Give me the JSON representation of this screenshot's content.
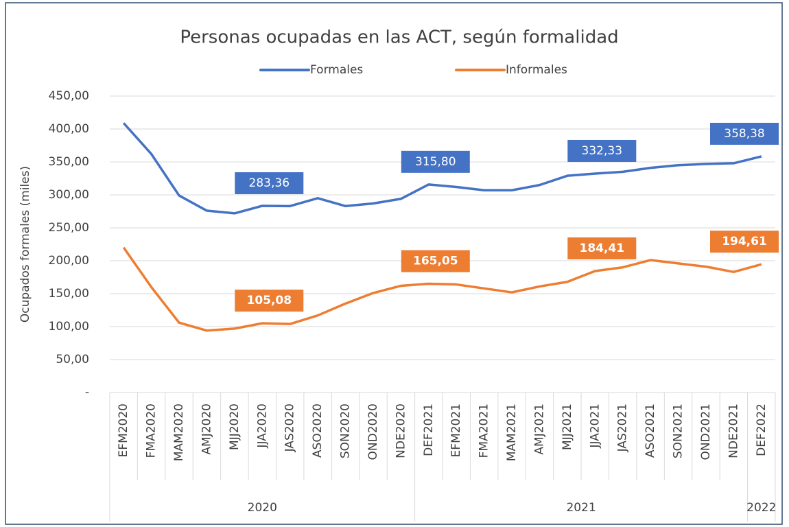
{
  "chart_data": {
    "type": "line",
    "title": "Personas ocupadas en las ACT, según formalidad",
    "y_label": "Ocupados formales (miles)",
    "categories": [
      "EFM2020",
      "FMA2020",
      "MAM2020",
      "AMJ2020",
      "MJJ2020",
      "JJA2020",
      "JAS2020",
      "ASO2020",
      "SON2020",
      "OND2020",
      "NDE2020",
      "DEF2021",
      "EFM2021",
      "FMA2021",
      "MAM2021",
      "AMJ2021",
      "MJJ2021",
      "JJA2021",
      "JAS2021",
      "ASO2021",
      "SON2021",
      "OND2021",
      "NDE2021",
      "DEF2022"
    ],
    "groups": [
      {
        "label": "2020",
        "count": 11
      },
      {
        "label": "2021",
        "count": 12
      },
      {
        "label": "2022",
        "count": 1
      }
    ],
    "series": [
      {
        "name": "Formales",
        "color": "#4472c4",
        "values": [
          409,
          362,
          299,
          276,
          272,
          283.36,
          283,
          295,
          283,
          287,
          294,
          315.8,
          312,
          307,
          307,
          315,
          329,
          332.33,
          335,
          341,
          345,
          347,
          348,
          358.38
        ],
        "value_labels": [
          null,
          null,
          null,
          null,
          null,
          "283,36",
          null,
          null,
          null,
          null,
          null,
          "315,80",
          null,
          null,
          null,
          null,
          null,
          "332,33",
          null,
          null,
          null,
          null,
          null,
          "358,38"
        ]
      },
      {
        "name": "Informales",
        "color": "#ed7d31",
        "values": [
          220,
          160,
          106,
          94,
          97,
          105.08,
          104,
          117,
          135,
          151,
          162,
          165.05,
          164,
          158,
          152,
          161,
          168,
          184.41,
          190,
          201,
          196,
          191,
          183,
          194.61
        ],
        "value_labels": [
          null,
          null,
          null,
          null,
          null,
          "105,08",
          null,
          null,
          null,
          null,
          null,
          "165,05",
          null,
          null,
          null,
          null,
          null,
          "184,41",
          null,
          null,
          null,
          null,
          null,
          "194,61"
        ]
      }
    ],
    "ylim": [
      0,
      450
    ],
    "yticks": [
      {
        "value": 0,
        "label": "-"
      },
      {
        "value": 50,
        "label": "50,00"
      },
      {
        "value": 100,
        "label": "100,00"
      },
      {
        "value": 150,
        "label": "150,00"
      },
      {
        "value": 200,
        "label": "200,00"
      },
      {
        "value": 250,
        "label": "250,00"
      },
      {
        "value": 300,
        "label": "300,00"
      },
      {
        "value": 350,
        "label": "350,00"
      },
      {
        "value": 400,
        "label": "400,00"
      },
      {
        "value": 450,
        "label": "450,00"
      }
    ],
    "grid": true,
    "legend": "top"
  }
}
